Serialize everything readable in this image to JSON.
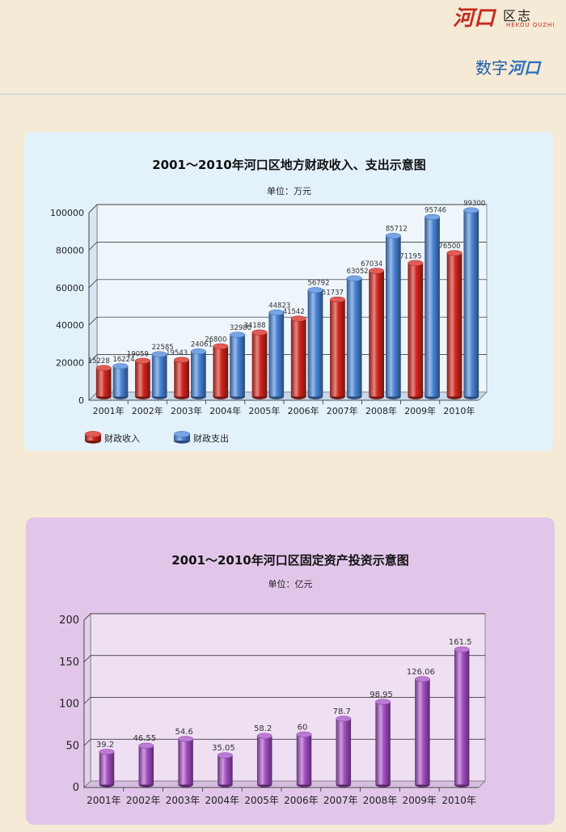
{
  "header": {
    "logo_main": "河口",
    "logo_sub": "区志",
    "logo_latin": "HEKOU QUZHI",
    "section_prefix": "数字",
    "section_accent": "河口"
  },
  "chart_data": [
    {
      "type": "bar",
      "title": "2001～2010年河口区地方财政收入、支出示意图",
      "unit_label": "单位：万元",
      "categories": [
        "2001年",
        "2002年",
        "2003年",
        "2004年",
        "2005年",
        "2006年",
        "2007年",
        "2008年",
        "2009年",
        "2010年"
      ],
      "series": [
        {
          "name": "财政收入",
          "color": "#d4271e",
          "values": [
            15228,
            19059,
            19543,
            26800,
            34188,
            41542,
            51737,
            67034,
            71195,
            76500
          ]
        },
        {
          "name": "财政支出",
          "color": "#4a86d9",
          "values": [
            16224,
            22585,
            24061,
            32980,
            44823,
            56792,
            63052,
            85712,
            95746,
            99300
          ]
        }
      ],
      "ylim": [
        0,
        100000
      ],
      "yticks": [
        0,
        20000,
        40000,
        60000,
        80000,
        100000
      ],
      "grid": true,
      "legend": "bottom-left"
    },
    {
      "type": "bar",
      "title": "2001～2010年河口区固定资产投资示意图",
      "unit_label": "单位：亿元",
      "categories": [
        "2001年",
        "2002年",
        "2003年",
        "2004年",
        "2005年",
        "2006年",
        "2007年",
        "2008年",
        "2009年",
        "2010年"
      ],
      "series": [
        {
          "color": "#a64fc4",
          "values": [
            39.2,
            46.55,
            54.6,
            35.05,
            58.2,
            60,
            78.7,
            98.95,
            126.06,
            161.5
          ],
          "labels": [
            "39.2",
            "46.55",
            "54.6",
            "35.05",
            "58.2",
            "60",
            "78.7",
            "98.95",
            "126.06",
            "161.5"
          ]
        }
      ],
      "ylim": [
        0,
        200
      ],
      "yticks": [
        0,
        50,
        100,
        150,
        200
      ],
      "grid": true
    }
  ]
}
